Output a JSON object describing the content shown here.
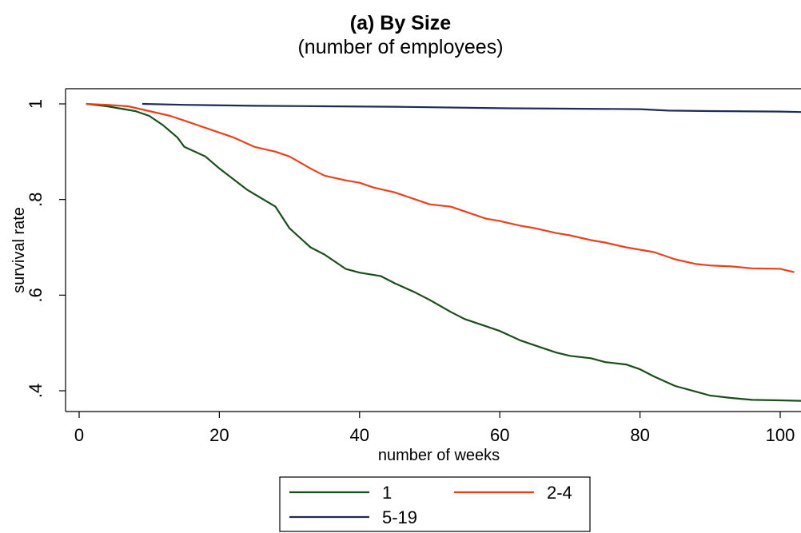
{
  "chart_data": {
    "type": "line",
    "title": "(a) By Size",
    "subtitle": "(number of employees)",
    "xlabel": "number of weeks",
    "ylabel": "survival rate",
    "xlim": [
      -2,
      104
    ],
    "ylim": [
      0.38,
      1.03
    ],
    "xticks": [
      0,
      20,
      40,
      60,
      80,
      100
    ],
    "xtick_labels": [
      "0",
      "20",
      "40",
      "60",
      "80",
      "100"
    ],
    "yticks": [
      0.4,
      0.6,
      0.8,
      1.0
    ],
    "ytick_labels": [
      ".4",
      ".6",
      ".8",
      "1"
    ],
    "grid": false,
    "legend_position": "bottom",
    "series": [
      {
        "name": "1",
        "color": "#1a4d1a",
        "x": [
          1,
          4,
          6,
          8,
          10,
          12,
          14,
          15,
          18,
          20,
          24,
          28,
          30,
          33,
          35,
          38,
          40,
          43,
          45,
          48,
          50,
          53,
          55,
          58,
          60,
          63,
          65,
          68,
          70,
          73,
          75,
          78,
          80,
          82,
          85,
          88,
          90,
          93,
          96,
          100,
          103
        ],
        "y": [
          1.0,
          0.995,
          0.99,
          0.985,
          0.975,
          0.955,
          0.93,
          0.91,
          0.89,
          0.865,
          0.82,
          0.785,
          0.74,
          0.7,
          0.685,
          0.655,
          0.647,
          0.64,
          0.625,
          0.605,
          0.59,
          0.565,
          0.55,
          0.535,
          0.525,
          0.505,
          0.495,
          0.48,
          0.473,
          0.468,
          0.46,
          0.455,
          0.445,
          0.43,
          0.41,
          0.398,
          0.39,
          0.385,
          0.381,
          0.38,
          0.379
        ]
      },
      {
        "name": "2-4",
        "color": "#e8421c",
        "x": [
          1,
          4,
          7,
          10,
          13,
          15,
          18,
          20,
          22,
          25,
          28,
          30,
          33,
          35,
          38,
          40,
          42,
          45,
          48,
          50,
          53,
          55,
          58,
          60,
          63,
          65,
          68,
          70,
          73,
          75,
          78,
          80,
          82,
          85,
          88,
          90,
          93,
          96,
          100,
          102
        ],
        "y": [
          1.0,
          0.998,
          0.995,
          0.985,
          0.975,
          0.965,
          0.95,
          0.94,
          0.93,
          0.91,
          0.9,
          0.89,
          0.865,
          0.85,
          0.84,
          0.835,
          0.825,
          0.815,
          0.8,
          0.79,
          0.785,
          0.775,
          0.76,
          0.755,
          0.745,
          0.74,
          0.73,
          0.725,
          0.715,
          0.71,
          0.7,
          0.695,
          0.69,
          0.675,
          0.665,
          0.662,
          0.66,
          0.656,
          0.655,
          0.648
        ]
      },
      {
        "name": "5-19",
        "color": "#1f2a5c",
        "x": [
          9,
          15,
          25,
          35,
          45,
          50,
          60,
          70,
          80,
          84,
          90,
          100,
          103
        ],
        "y": [
          1.0,
          0.998,
          0.996,
          0.995,
          0.994,
          0.993,
          0.991,
          0.99,
          0.989,
          0.986,
          0.985,
          0.984,
          0.983
        ]
      }
    ]
  }
}
